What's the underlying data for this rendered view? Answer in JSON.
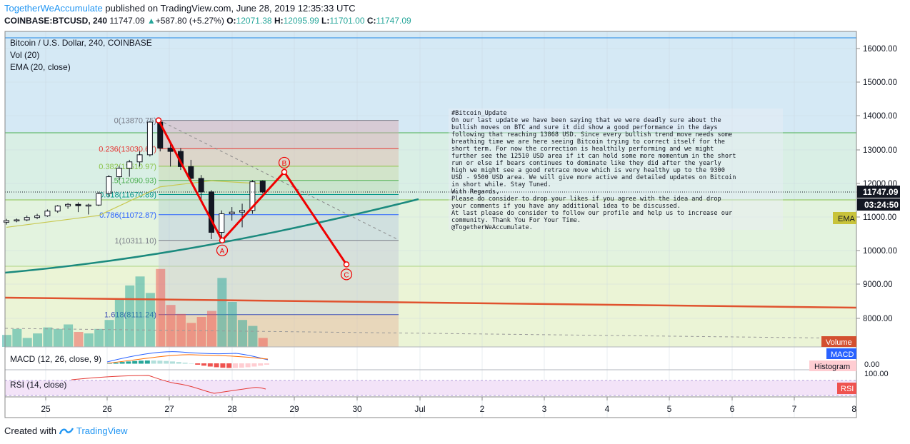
{
  "header": {
    "author": "TogetherWeAccumulate",
    "published": "published on TradingView.com, June 28, 2019 12:35:33 UTC",
    "symbol": "COINBASE:BTCUSD, 240",
    "last": "11747.09",
    "change": "+587.80 (+5.27%)",
    "o_label": "O:",
    "o_val": "12071.38",
    "h_label": "H:",
    "h_val": "12095.99",
    "l_label": "L:",
    "l_val": "11701.00",
    "c_label": "C:",
    "c_val": "11747.09"
  },
  "legend": {
    "title": "Bitcoin / U.S. Dollar, 240, COINBASE",
    "vol": "Vol (20)",
    "ema": "EMA (20, close)"
  },
  "price_axis": {
    "ticks": [
      "16000.00",
      "15000.00",
      "14000.00",
      "13000.00",
      "12000.00",
      "11000.00",
      "10000.00",
      "9000.00",
      "8000.00"
    ],
    "current_price": "11747.09",
    "countdown": "03:24:50",
    "ema_tag": "EMA",
    "volume_tag": "Volume"
  },
  "macd_pane": {
    "label": "MACD (12, 26, close, 9)",
    "tag": "MACD",
    "histogram_tag": "Histogram",
    "tick": "0.00"
  },
  "rsi_pane": {
    "label": "RSI (14, close)",
    "tag": "RSI",
    "tick": "100.00"
  },
  "time_axis": [
    "25",
    "26",
    "27",
    "28",
    "29",
    "30",
    "Jul",
    "2",
    "3",
    "4",
    "5",
    "6",
    "7",
    "8"
  ],
  "fib_levels": [
    {
      "label": "0(13870.75)",
      "price": 13870.75,
      "color": "#787b86"
    },
    {
      "label": "0.236(13030.67)",
      "price": 13030.67,
      "color": "#e53935"
    },
    {
      "label": "0.382(12510.97)",
      "price": 12510.97,
      "color": "#8bc34a"
    },
    {
      "label": "0.5(12090.93)",
      "price": 12090.93,
      "color": "#4caf50"
    },
    {
      "label": "0.618(11670.89)",
      "price": 11670.89,
      "color": "#009688"
    },
    {
      "label": "0.786(11072.87)",
      "price": 11072.87,
      "color": "#2962ff"
    },
    {
      "label": "1(10311.10)",
      "price": 10311.1,
      "color": "#787b86"
    },
    {
      "label": "1.618(8111.24)",
      "price": 8111.24,
      "color": "#3f51b5"
    }
  ],
  "abc_labels": [
    "A",
    "B",
    "C"
  ],
  "note": [
    "#Bitcoin_Update",
    "On our last update we have been saying that we were deadly sure about the",
    "bullish moves on BTC and sure it did show a good performance in the days",
    "following that reaching 13868 USD. Since every bullish trend move needs some",
    "breathing time we are here seeing Bitcoin trying to correct itself for the",
    "short term. For now the correction is healthily performing and we might",
    "further see the 12510 USD area if it can hold some more momentum in the short",
    "run or else if bears continues to dominate like they did after the yearly",
    "high we might see a good retrace move which is very healthy up to the 9300",
    "USD - 9500 USD area. We will give more active and detailed updates on Bitcoin",
    "in short while. Stay Tuned.",
    "With Regards,",
    "Please do consider to drop your likes if you agree with the idea and drop",
    "your comments if you have any additional idea to be discussed.",
    "At last please do consider to follow our profile and help us to increase our",
    "community. Thank You For Your Time.",
    "@TogetherWeAccumulate."
  ],
  "footer": {
    "created_with": "Created with",
    "brand": "TradingView"
  },
  "colors": {
    "up": "#26a69a",
    "down": "#ef5350",
    "wave": "#f00000",
    "ema": "#c8c850"
  },
  "chart_data": {
    "type": "candlestick",
    "timeframe": "240",
    "x_tick_labels": [
      "25",
      "26",
      "27",
      "28",
      "29",
      "30",
      "Jul",
      "2",
      "3",
      "4",
      "5",
      "6",
      "7",
      "8"
    ],
    "ylim": [
      7500,
      16500
    ],
    "candles": [
      {
        "o": 10850,
        "h": 10950,
        "l": 10780,
        "c": 10900
      },
      {
        "o": 10900,
        "h": 10960,
        "l": 10850,
        "c": 10920
      },
      {
        "o": 10920,
        "h": 11050,
        "l": 10880,
        "c": 10990
      },
      {
        "o": 10990,
        "h": 11100,
        "l": 10940,
        "c": 11040
      },
      {
        "o": 11040,
        "h": 11230,
        "l": 11010,
        "c": 11180
      },
      {
        "o": 11180,
        "h": 11360,
        "l": 11130,
        "c": 11330
      },
      {
        "o": 11330,
        "h": 11420,
        "l": 11250,
        "c": 11380
      },
      {
        "o": 11380,
        "h": 11440,
        "l": 11150,
        "c": 11340
      },
      {
        "o": 11340,
        "h": 11400,
        "l": 11080,
        "c": 11360
      },
      {
        "o": 11360,
        "h": 11750,
        "l": 11330,
        "c": 11700
      },
      {
        "o": 11700,
        "h": 12250,
        "l": 11600,
        "c": 12200
      },
      {
        "o": 12200,
        "h": 12520,
        "l": 12100,
        "c": 12450
      },
      {
        "o": 12450,
        "h": 12700,
        "l": 12200,
        "c": 12640
      },
      {
        "o": 12640,
        "h": 12950,
        "l": 12500,
        "c": 12850
      },
      {
        "o": 12850,
        "h": 13850,
        "l": 12800,
        "c": 13820
      },
      {
        "o": 13820,
        "h": 13870,
        "l": 12950,
        "c": 13050
      },
      {
        "o": 13050,
        "h": 13200,
        "l": 12500,
        "c": 12950
      },
      {
        "o": 12950,
        "h": 13050,
        "l": 12400,
        "c": 12500
      },
      {
        "o": 12500,
        "h": 12700,
        "l": 12100,
        "c": 12150
      },
      {
        "o": 12150,
        "h": 12250,
        "l": 11500,
        "c": 11750
      },
      {
        "o": 11750,
        "h": 11800,
        "l": 10350,
        "c": 10550
      },
      {
        "o": 10550,
        "h": 11200,
        "l": 10311,
        "c": 11100
      },
      {
        "o": 11100,
        "h": 11300,
        "l": 10900,
        "c": 11150
      },
      {
        "o": 11150,
        "h": 11400,
        "l": 10700,
        "c": 11200
      },
      {
        "o": 11200,
        "h": 12100,
        "l": 11100,
        "c": 12050
      },
      {
        "o": 12071.38,
        "h": 12095.99,
        "l": 11701.0,
        "c": 11747.09
      }
    ],
    "volume": [
      8,
      12,
      6,
      9,
      13,
      12,
      15,
      10,
      9,
      12,
      18,
      32,
      41,
      47,
      36,
      52,
      28,
      22,
      16,
      20,
      24,
      46,
      30,
      18,
      14,
      6
    ],
    "ema20_line": [
      {
        "x": 0,
        "y": 10700
      },
      {
        "x": 9,
        "y": 11050
      },
      {
        "x": 15,
        "y": 11900
      },
      {
        "x": 20,
        "y": 12080
      },
      {
        "x": 25,
        "y": 11990
      }
    ],
    "abc_path": [
      {
        "point": "start",
        "price": 13870.75
      },
      {
        "point": "A",
        "price": 10311.1
      },
      {
        "point": "B",
        "price": 12340
      },
      {
        "point": "C",
        "price": 9600
      }
    ],
    "horizontal_lines": [
      13500,
      11500,
      9500,
      8500
    ],
    "legend": [
      "Vol (20)",
      "EMA (20, close)"
    ]
  }
}
